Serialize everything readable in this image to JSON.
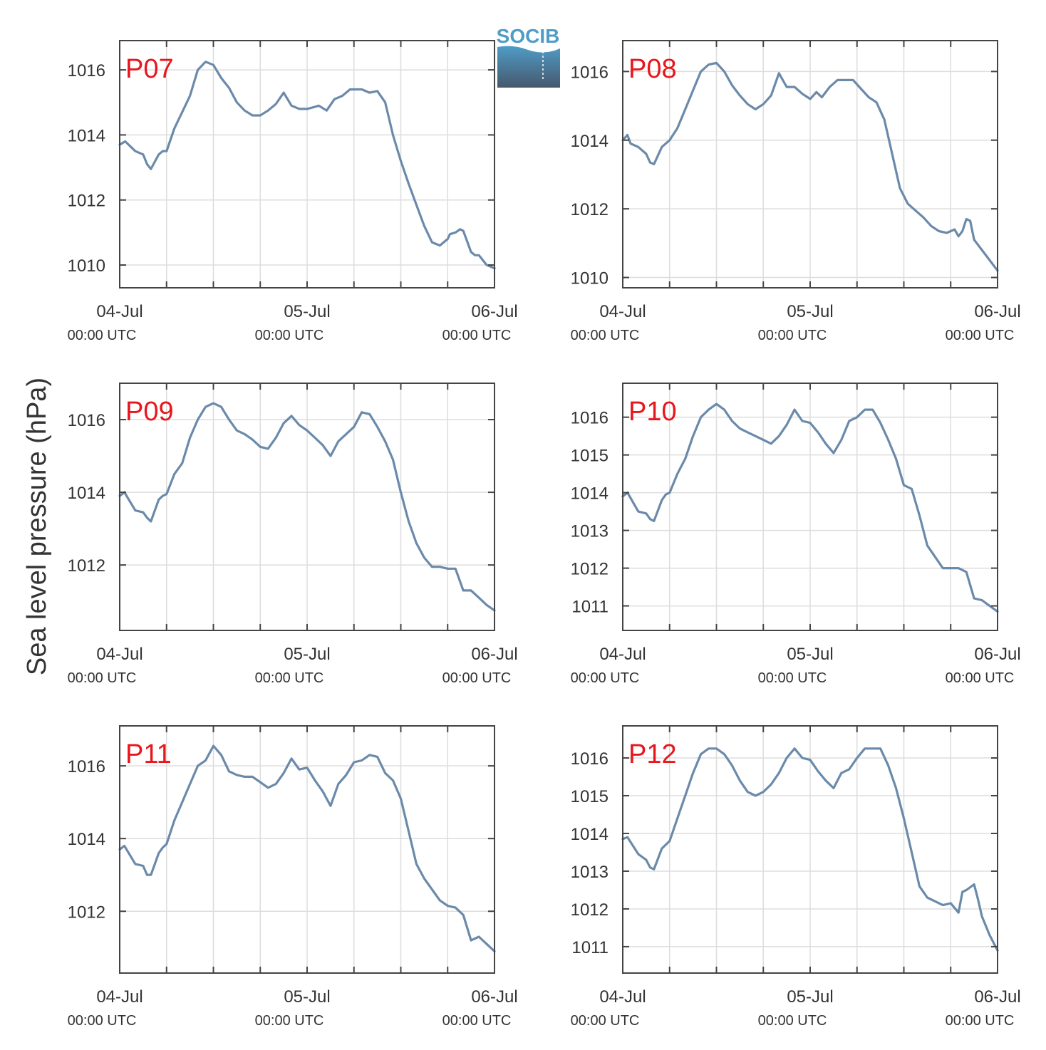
{
  "figure": {
    "ylabel": "Sea level pressure (hPa)",
    "logo_text": "SOCIB",
    "colors": {
      "line": "#6b8aaa",
      "label": "#e8161c",
      "axis": "#444444",
      "grid": "#dddddd",
      "logo_top": "#4f9cc7",
      "logo_bottom": "#46586c"
    }
  },
  "chart_data": [
    {
      "type": "line",
      "label": "P07",
      "xticks": [
        0,
        24,
        48
      ],
      "xtick_labels": [
        [
          "04-Jul",
          "00:00 UTC"
        ],
        [
          "05-Jul",
          "00:00 UTC"
        ],
        [
          "06-Jul",
          "00:00 UTC"
        ]
      ],
      "xlim": [
        0,
        48
      ],
      "ylim": [
        1009.3,
        1016.9
      ],
      "yticks": [
        1010,
        1012,
        1014,
        1016
      ],
      "x": [
        0,
        0.7,
        2,
        3,
        3.5,
        4,
        5,
        5.5,
        6,
        7,
        8,
        9,
        10,
        11,
        12,
        13,
        14,
        15,
        16,
        17,
        18,
        19,
        20,
        21,
        22,
        23,
        24,
        24.8,
        25.5,
        26.5,
        27.5,
        28.5,
        29.5,
        31,
        32,
        33,
        34,
        35,
        36,
        37,
        38,
        39,
        40,
        41,
        42,
        42.3,
        43,
        43.6,
        44,
        45,
        45.5,
        46,
        47,
        48
      ],
      "y": [
        1013.7,
        1013.8,
        1013.5,
        1013.4,
        1013.1,
        1012.95,
        1013.4,
        1013.5,
        1013.5,
        1014.2,
        1014.7,
        1015.2,
        1016.0,
        1016.25,
        1016.15,
        1015.75,
        1015.45,
        1015.0,
        1014.75,
        1014.6,
        1014.6,
        1014.75,
        1014.95,
        1015.3,
        1014.9,
        1014.8,
        1014.8,
        1014.85,
        1014.9,
        1014.75,
        1015.1,
        1015.2,
        1015.4,
        1015.4,
        1015.3,
        1015.35,
        1015.0,
        1014.0,
        1013.2,
        1012.5,
        1011.85,
        1011.2,
        1010.7,
        1010.6,
        1010.8,
        1010.95,
        1011.0,
        1011.1,
        1011.05,
        1010.4,
        1010.3,
        1010.3,
        1010.0,
        1009.9
      ]
    },
    {
      "type": "line",
      "label": "P08",
      "xticks": [
        0,
        24,
        48
      ],
      "xtick_labels": [
        [
          "04-Jul",
          "00:00 UTC"
        ],
        [
          "05-Jul",
          "00:00 UTC"
        ],
        [
          "06-Jul",
          "00:00 UTC"
        ]
      ],
      "xlim": [
        0,
        48
      ],
      "ylim": [
        1009.7,
        1016.9
      ],
      "yticks": [
        1010,
        1012,
        1014,
        1016
      ],
      "x": [
        0,
        0.6,
        1,
        2,
        3,
        3.5,
        4,
        5,
        5.5,
        6,
        7,
        8,
        9,
        10,
        11,
        12,
        13,
        14,
        15,
        16,
        17,
        18,
        19,
        20,
        21,
        22,
        23,
        24,
        24.8,
        25.5,
        26.5,
        27.5,
        28.5,
        29.5,
        30.5,
        31.5,
        32.5,
        33.5,
        34.5,
        35.5,
        36.5,
        37.5,
        38.5,
        39.5,
        40.5,
        41.5,
        42.5,
        43,
        43.5,
        44,
        44.5,
        45,
        46,
        47,
        48
      ],
      "y": [
        1014.0,
        1014.15,
        1013.9,
        1013.8,
        1013.6,
        1013.35,
        1013.3,
        1013.8,
        1013.9,
        1014.0,
        1014.35,
        1014.9,
        1015.45,
        1016.0,
        1016.2,
        1016.25,
        1016.0,
        1015.6,
        1015.3,
        1015.05,
        1014.9,
        1015.05,
        1015.3,
        1015.95,
        1015.55,
        1015.55,
        1015.35,
        1015.2,
        1015.4,
        1015.25,
        1015.55,
        1015.75,
        1015.75,
        1015.75,
        1015.5,
        1015.25,
        1015.1,
        1014.6,
        1013.6,
        1012.6,
        1012.15,
        1011.95,
        1011.75,
        1011.5,
        1011.35,
        1011.3,
        1011.4,
        1011.2,
        1011.35,
        1011.7,
        1011.65,
        1011.1,
        1010.8,
        1010.5,
        1010.2
      ]
    },
    {
      "type": "line",
      "label": "P09",
      "xticks": [
        0,
        24,
        48
      ],
      "xtick_labels": [
        [
          "04-Jul",
          "00:00 UTC"
        ],
        [
          "05-Jul",
          "00:00 UTC"
        ],
        [
          "06-Jul",
          "00:00 UTC"
        ]
      ],
      "xlim": [
        0,
        48
      ],
      "ylim": [
        1010.2,
        1017.0
      ],
      "yticks": [
        1012,
        1014,
        1016
      ],
      "x": [
        0,
        0.6,
        2,
        3,
        3.5,
        4,
        5,
        5.5,
        6,
        7,
        8,
        9,
        10,
        11,
        12,
        13,
        14,
        15,
        16,
        17,
        18,
        19,
        20,
        21,
        22,
        23,
        24,
        25,
        26,
        27,
        28,
        29,
        30,
        31,
        32,
        33,
        34,
        35,
        36,
        37,
        38,
        39,
        40,
        41,
        42,
        43,
        44,
        45,
        46,
        47,
        48
      ],
      "y": [
        1013.9,
        1014.0,
        1013.5,
        1013.45,
        1013.3,
        1013.2,
        1013.8,
        1013.9,
        1013.95,
        1014.5,
        1014.8,
        1015.5,
        1016.0,
        1016.35,
        1016.45,
        1016.35,
        1016.0,
        1015.7,
        1015.6,
        1015.45,
        1015.25,
        1015.2,
        1015.5,
        1015.9,
        1016.1,
        1015.85,
        1015.7,
        1015.5,
        1015.3,
        1015.0,
        1015.4,
        1015.6,
        1015.8,
        1016.2,
        1016.15,
        1015.8,
        1015.4,
        1014.9,
        1014.0,
        1013.2,
        1012.6,
        1012.2,
        1011.95,
        1011.95,
        1011.9,
        1011.9,
        1011.3,
        1011.3,
        1011.1,
        1010.9,
        1010.75
      ]
    },
    {
      "type": "line",
      "label": "P10",
      "xticks": [
        0,
        24,
        48
      ],
      "xtick_labels": [
        [
          "04-Jul",
          "00:00 UTC"
        ],
        [
          "05-Jul",
          "00:00 UTC"
        ],
        [
          "06-Jul",
          "00:00 UTC"
        ]
      ],
      "xlim": [
        0,
        48
      ],
      "ylim": [
        1010.35,
        1016.9
      ],
      "yticks": [
        1011,
        1012,
        1013,
        1014,
        1015,
        1016
      ],
      "x": [
        0,
        0.6,
        2,
        3,
        3.5,
        4,
        5,
        5.5,
        6,
        7,
        8,
        9,
        10,
        11,
        12,
        13,
        14,
        15,
        16,
        17,
        18,
        19,
        20,
        21,
        22,
        23,
        24,
        25,
        26,
        27,
        28,
        29,
        30,
        31,
        32,
        33,
        34,
        35,
        36,
        37,
        38,
        39,
        40,
        41,
        42,
        43,
        44,
        45,
        46,
        47,
        48
      ],
      "y": [
        1013.9,
        1014.0,
        1013.5,
        1013.45,
        1013.3,
        1013.25,
        1013.8,
        1013.95,
        1014.0,
        1014.5,
        1014.9,
        1015.5,
        1016.0,
        1016.2,
        1016.35,
        1016.2,
        1015.9,
        1015.7,
        1015.6,
        1015.5,
        1015.4,
        1015.3,
        1015.5,
        1015.8,
        1016.2,
        1015.9,
        1015.85,
        1015.6,
        1015.3,
        1015.05,
        1015.4,
        1015.9,
        1016.0,
        1016.2,
        1016.2,
        1015.85,
        1015.4,
        1014.9,
        1014.2,
        1014.1,
        1013.4,
        1012.6,
        1012.3,
        1012.0,
        1012.0,
        1012.0,
        1011.9,
        1011.2,
        1011.15,
        1011.0,
        1010.85
      ]
    },
    {
      "type": "line",
      "label": "P11",
      "xticks": [
        0,
        24,
        48
      ],
      "xtick_labels": [
        [
          "04-Jul",
          "00:00 UTC"
        ],
        [
          "05-Jul",
          "00:00 UTC"
        ],
        [
          "06-Jul",
          "00:00 UTC"
        ]
      ],
      "xlim": [
        0,
        48
      ],
      "ylim": [
        1010.3,
        1017.1
      ],
      "yticks": [
        1012,
        1014,
        1016
      ],
      "x": [
        0,
        0.6,
        2,
        3,
        3.5,
        4,
        5,
        5.5,
        6,
        7,
        8,
        9,
        10,
        11,
        12,
        13,
        14,
        15,
        16,
        17,
        18,
        19,
        20,
        21,
        22,
        23,
        24,
        25,
        26,
        27,
        28,
        29,
        30,
        31,
        32,
        33,
        34,
        35,
        36,
        37,
        38,
        39,
        40,
        41,
        42,
        43,
        44,
        45,
        46,
        47,
        48
      ],
      "y": [
        1013.7,
        1013.8,
        1013.3,
        1013.25,
        1013.0,
        1013.0,
        1013.6,
        1013.75,
        1013.85,
        1014.5,
        1015.0,
        1015.5,
        1016.0,
        1016.15,
        1016.55,
        1016.3,
        1015.85,
        1015.75,
        1015.7,
        1015.7,
        1015.55,
        1015.4,
        1015.5,
        1015.8,
        1016.2,
        1015.9,
        1015.95,
        1015.6,
        1015.3,
        1014.9,
        1015.5,
        1015.75,
        1016.1,
        1016.15,
        1016.3,
        1016.25,
        1015.8,
        1015.6,
        1015.1,
        1014.2,
        1013.3,
        1012.9,
        1012.6,
        1012.3,
        1012.15,
        1012.1,
        1011.9,
        1011.2,
        1011.3,
        1011.1,
        1010.9
      ]
    },
    {
      "type": "line",
      "label": "P12",
      "xticks": [
        0,
        24,
        48
      ],
      "xtick_labels": [
        [
          "04-Jul",
          "00:00 UTC"
        ],
        [
          "05-Jul",
          "00:00 UTC"
        ],
        [
          "06-Jul",
          "00:00 UTC"
        ]
      ],
      "xlim": [
        0,
        48
      ],
      "ylim": [
        1010.3,
        1016.85
      ],
      "yticks": [
        1011,
        1012,
        1013,
        1014,
        1015,
        1016
      ],
      "x": [
        0,
        0.6,
        2,
        3,
        3.5,
        4,
        5,
        5.5,
        6,
        7,
        8,
        9,
        10,
        11,
        12,
        13,
        14,
        15,
        16,
        17,
        18,
        19,
        20,
        21,
        22,
        23,
        24,
        25,
        26,
        27,
        28,
        29,
        30,
        31,
        32,
        33,
        34,
        35,
        36,
        37,
        38,
        39,
        40,
        41,
        42,
        43,
        43.5,
        44,
        45,
        45.5,
        46,
        47,
        48
      ],
      "y": [
        1013.85,
        1013.9,
        1013.45,
        1013.3,
        1013.1,
        1013.05,
        1013.6,
        1013.7,
        1013.8,
        1014.4,
        1015.0,
        1015.6,
        1016.1,
        1016.25,
        1016.25,
        1016.1,
        1015.8,
        1015.4,
        1015.1,
        1015.0,
        1015.1,
        1015.3,
        1015.6,
        1016.0,
        1016.25,
        1016.0,
        1015.95,
        1015.65,
        1015.4,
        1015.2,
        1015.6,
        1015.7,
        1016.0,
        1016.25,
        1016.25,
        1016.25,
        1015.8,
        1015.2,
        1014.4,
        1013.5,
        1012.6,
        1012.3,
        1012.2,
        1012.1,
        1012.15,
        1011.9,
        1012.45,
        1012.5,
        1012.65,
        1012.25,
        1011.8,
        1011.3,
        1010.9
      ]
    }
  ]
}
